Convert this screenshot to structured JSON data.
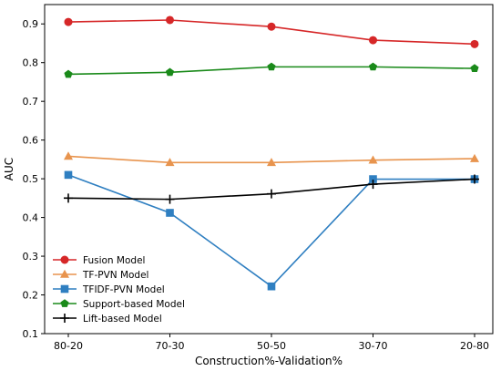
{
  "chart_data": {
    "type": "line",
    "xlabel": "Construction%-Validation%",
    "ylabel": "AUC",
    "categories": [
      "80-20",
      "70-30",
      "50-50",
      "30-70",
      "20-80"
    ],
    "ylim": [
      0.1,
      0.95
    ],
    "yticks": [
      0.1,
      0.2,
      0.3,
      0.4,
      0.5,
      0.6,
      0.7,
      0.8,
      0.9
    ],
    "ytick_labels": [
      "0.1",
      "0.2",
      "0.3",
      "0.4",
      "0.5",
      "0.6",
      "0.7",
      "0.8",
      "0.9"
    ],
    "grid": false,
    "legend_position": "lower-left",
    "series": [
      {
        "name": "Fusion Model",
        "color": "#d62728",
        "marker": "circle",
        "values": [
          0.905,
          0.91,
          0.893,
          0.858,
          0.848
        ]
      },
      {
        "name": "TF-PVN Model",
        "color": "#e8944e",
        "marker": "triangle",
        "values": [
          0.558,
          0.542,
          0.542,
          0.548,
          0.552
        ]
      },
      {
        "name": "TFIDF-PVN Model",
        "color": "#2f7fc1",
        "marker": "square",
        "values": [
          0.51,
          0.412,
          0.222,
          0.499,
          0.499
        ]
      },
      {
        "name": "Support-based Model",
        "color": "#1a8a1a",
        "marker": "pentagon",
        "values": [
          0.77,
          0.775,
          0.789,
          0.789,
          0.785
        ]
      },
      {
        "name": "Lift-based Model",
        "color": "#000000",
        "marker": "plus",
        "values": [
          0.45,
          0.447,
          0.461,
          0.486,
          0.499
        ]
      }
    ]
  }
}
